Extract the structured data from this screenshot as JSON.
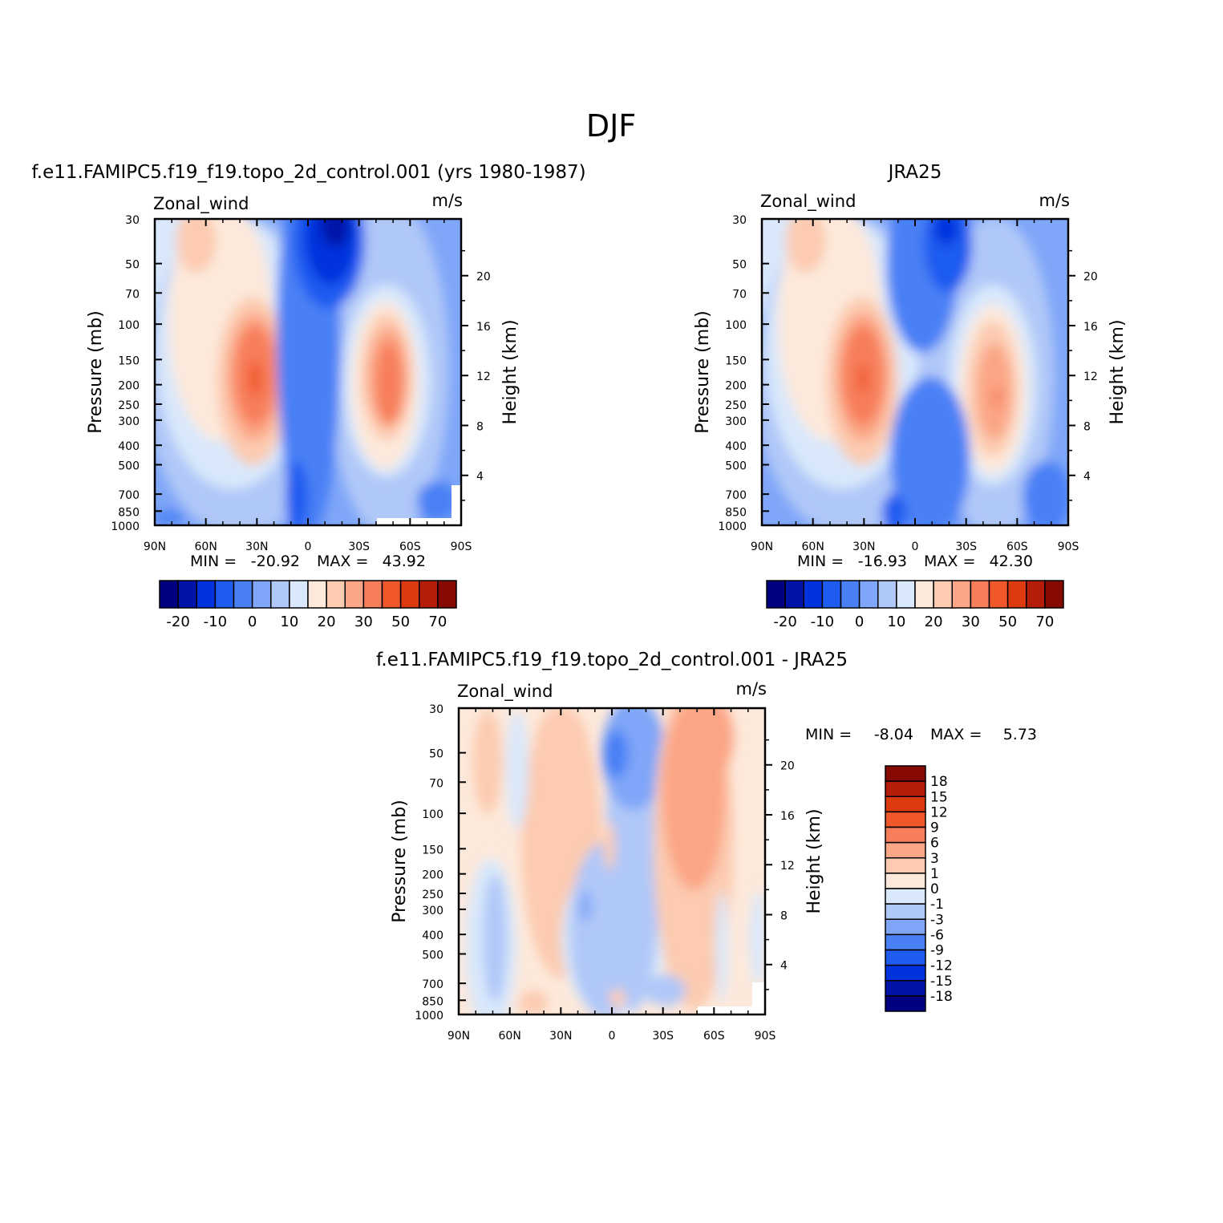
{
  "figure": {
    "title": "DJF",
    "cmap_main": [
      "#000080",
      "#0014a8",
      "#0033dd",
      "#1f5cf0",
      "#4a80f5",
      "#7fa6f8",
      "#b0c8f8",
      "#d9e8fb",
      "#fde9db",
      "#fccbb0",
      "#fba686",
      "#f77e5a",
      "#f0582c",
      "#dd3a10",
      "#b41e08",
      "#870a02"
    ],
    "cmap_diff": [
      "#870a02",
      "#b41e08",
      "#dd3a10",
      "#f0582c",
      "#f77e5a",
      "#fba686",
      "#fccbb0",
      "#fde9db",
      "#d9e8fb",
      "#b0c8f8",
      "#7fa6f8",
      "#4a80f5",
      "#1f5cf0",
      "#0033dd",
      "#0014a8",
      "#000080"
    ]
  },
  "chart_data": [
    {
      "type": "heatmap",
      "title": "f.e11.FAMIPC5.f19_f19.topo_2d_control.001 (yrs 1980-1987)",
      "variable": "Zonal_wind",
      "units": "m/s",
      "ylabel": "Pressure (mb)",
      "y2label": "Height (km)",
      "xticks": [
        "90N",
        "60N",
        "30N",
        "0",
        "30S",
        "60S",
        "90S"
      ],
      "yticks": [
        "30",
        "50",
        "70",
        "100",
        "150",
        "200",
        "250",
        "300",
        "400",
        "500",
        "700",
        "850",
        "1000"
      ],
      "y2ticks": [
        "20",
        "16",
        "12",
        "8",
        "4"
      ],
      "min_label": "MIN =",
      "min": "-20.92",
      "max_label": "MAX =",
      "max": "43.92",
      "colorbar_labels": [
        "-20",
        "-10",
        "0",
        "10",
        "20",
        "30",
        "50",
        "70"
      ]
    },
    {
      "type": "heatmap",
      "title": "JRA25",
      "variable": "Zonal_wind",
      "units": "m/s",
      "ylabel": "Pressure (mb)",
      "y2label": "Height (km)",
      "xticks": [
        "90N",
        "60N",
        "30N",
        "0",
        "30S",
        "60S",
        "90S"
      ],
      "yticks": [
        "30",
        "50",
        "70",
        "100",
        "150",
        "200",
        "250",
        "300",
        "400",
        "500",
        "700",
        "850",
        "1000"
      ],
      "y2ticks": [
        "20",
        "16",
        "12",
        "8",
        "4"
      ],
      "min_label": "MIN =",
      "min": "-16.93",
      "max_label": "MAX =",
      "max": "42.30",
      "colorbar_labels": [
        "-20",
        "-10",
        "0",
        "10",
        "20",
        "30",
        "50",
        "70"
      ]
    },
    {
      "type": "heatmap",
      "title": "f.e11.FAMIPC5.f19_f19.topo_2d_control.001 - JRA25",
      "variable": "Zonal_wind",
      "units": "m/s",
      "ylabel": "Pressure (mb)",
      "y2label": "Height (km)",
      "xticks": [
        "90N",
        "60N",
        "30N",
        "0",
        "30S",
        "60S",
        "90S"
      ],
      "yticks": [
        "30",
        "50",
        "70",
        "100",
        "150",
        "200",
        "250",
        "300",
        "400",
        "500",
        "700",
        "850",
        "1000"
      ],
      "y2ticks": [
        "20",
        "16",
        "12",
        "8",
        "4"
      ],
      "min_label": "MIN =",
      "min": "-8.04",
      "max_label": "MAX =",
      "max": "5.73",
      "colorbar_labels": [
        "18",
        "15",
        "12",
        "9",
        "6",
        "3",
        "1",
        "0",
        "-1",
        "-3",
        "-6",
        "-9",
        "-12",
        "-15",
        "-18"
      ]
    }
  ]
}
